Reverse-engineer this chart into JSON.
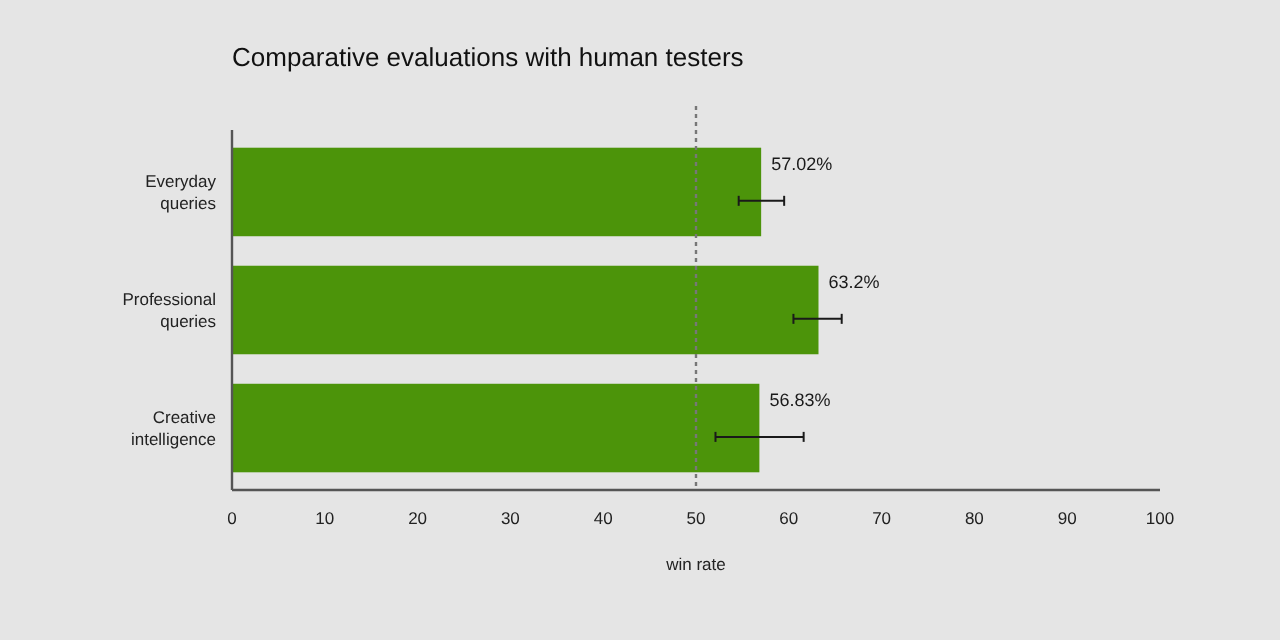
{
  "chart_data": {
    "type": "bar",
    "orientation": "horizontal",
    "title": "Comparative evaluations with human testers",
    "xlabel": "win rate",
    "categories": [
      "Everyday queries",
      "Professional queries",
      "Creative intelligence"
    ],
    "values": [
      57.02,
      63.2,
      56.83
    ],
    "value_labels": [
      "57.02%",
      "63.2%",
      "56.83%"
    ],
    "errors": [
      [
        54.6,
        59.5
      ],
      [
        60.5,
        65.7
      ],
      [
        52.1,
        61.6
      ]
    ],
    "color": "#4c940a",
    "xlim": [
      0,
      100
    ],
    "xticks": [
      0,
      10,
      20,
      30,
      40,
      50,
      60,
      70,
      80,
      90,
      100
    ],
    "ref_lines": [
      {
        "axis": "x",
        "value": 50,
        "line_style": "dotted",
        "color": "#777777"
      }
    ],
    "grid": false
  }
}
